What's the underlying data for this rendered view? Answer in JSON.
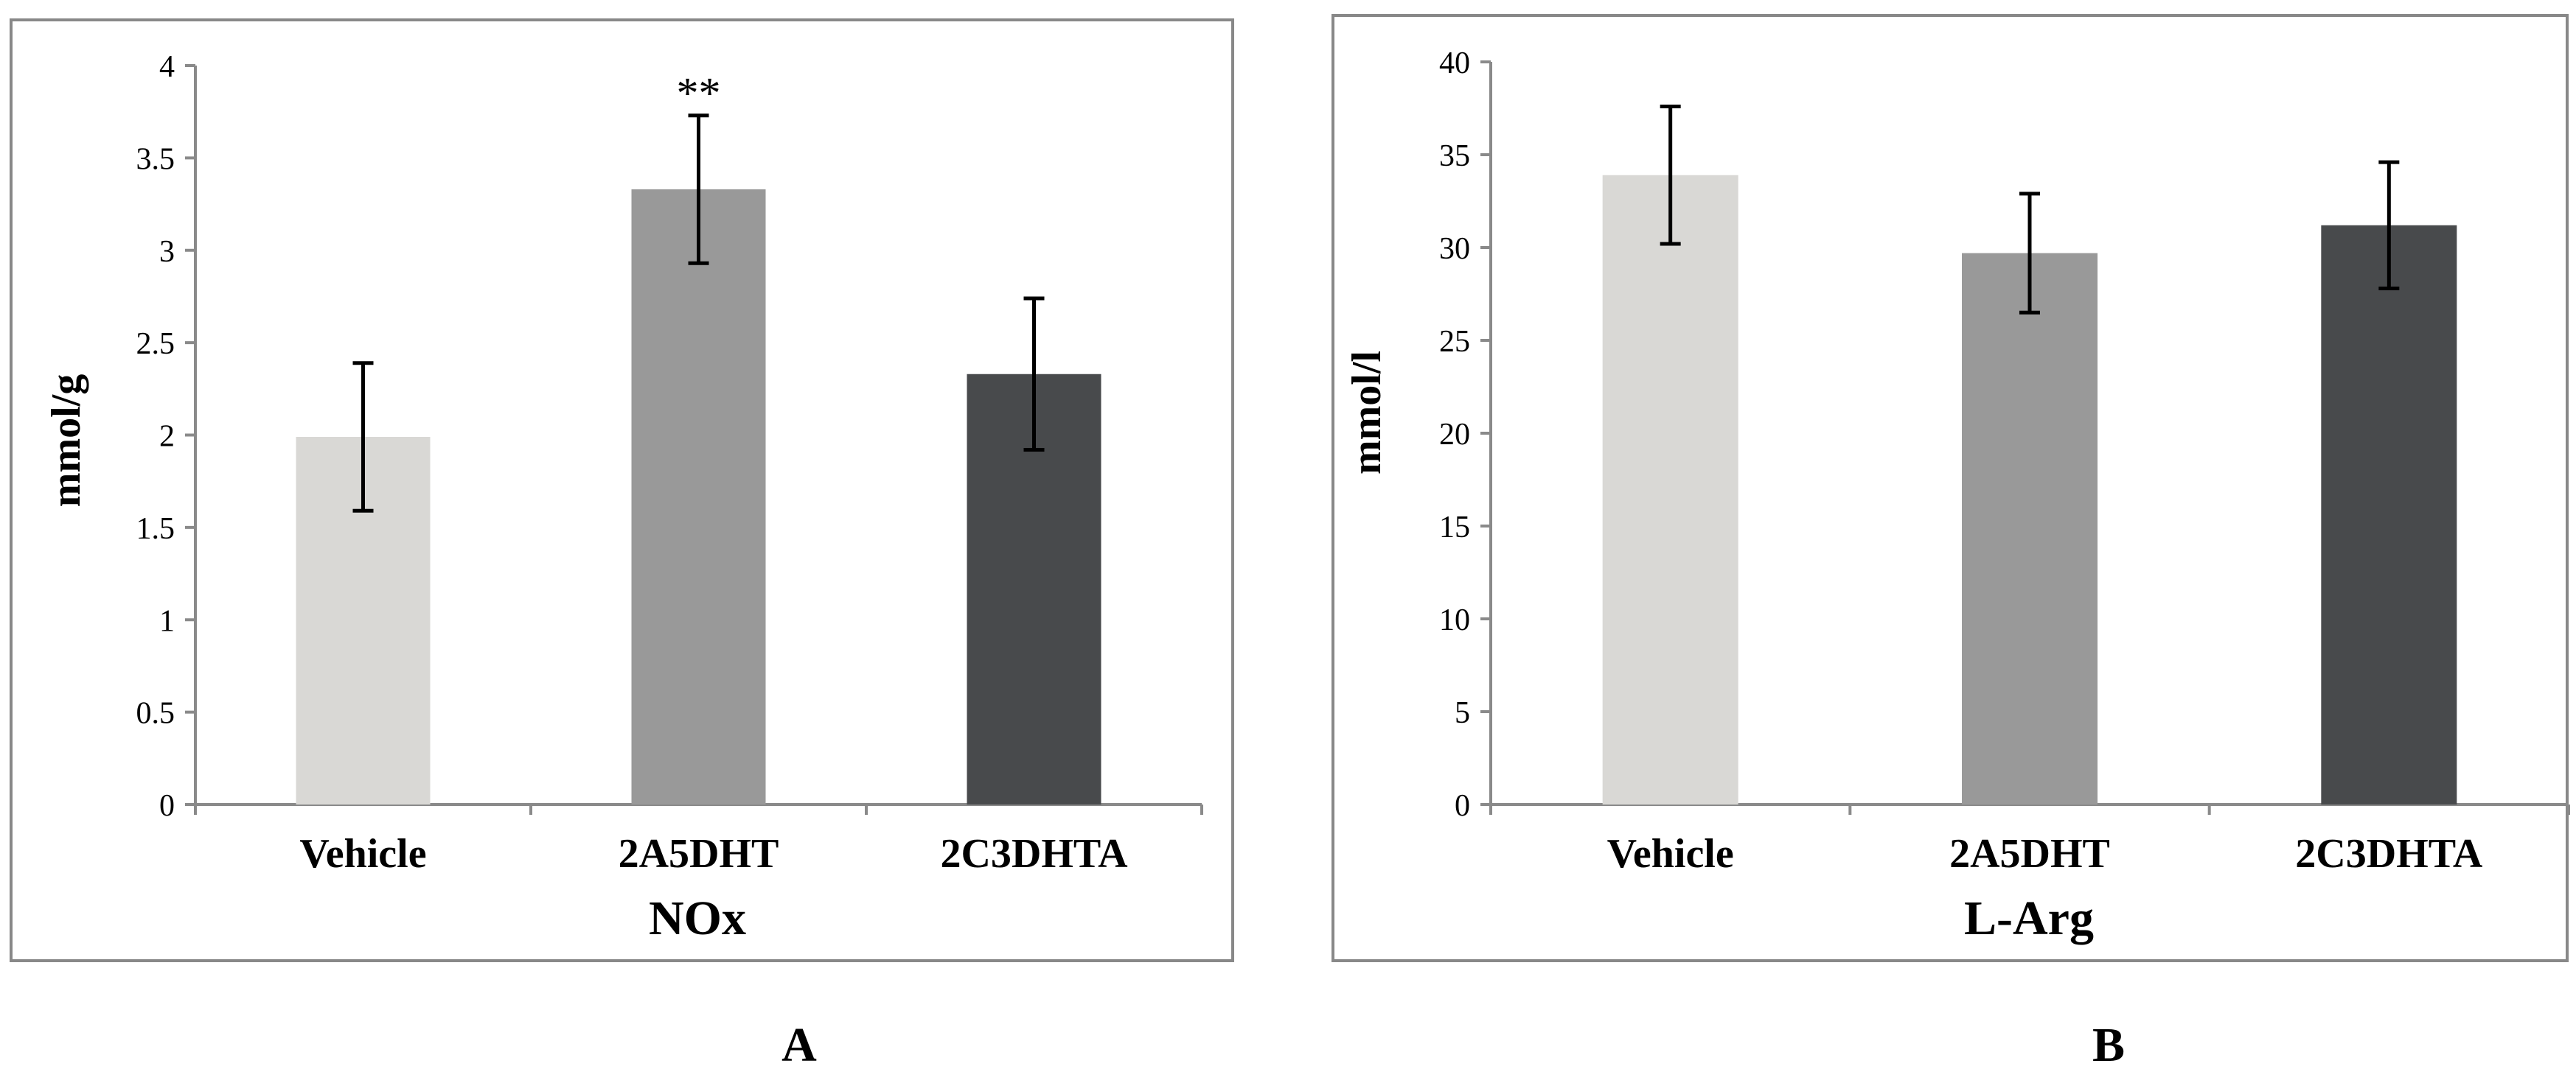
{
  "chart_data": [
    {
      "type": "bar",
      "panel_label": "A",
      "title": "",
      "xlabel": "NOx",
      "ylabel": "mmol/g",
      "categories": [
        "Vehicle",
        "2A5DHT",
        "2C3DHTA"
      ],
      "values": [
        1.99,
        3.33,
        2.33
      ],
      "errors": [
        0.4,
        0.4,
        0.41
      ],
      "annotations": [
        "",
        "**",
        ""
      ],
      "colors": [
        "#d9d8d5",
        "#999999",
        "#484a4c"
      ],
      "ylim": [
        0,
        4
      ],
      "yticks": [
        "0",
        "0.5",
        "1",
        "1.5",
        "2",
        "2.5",
        "3",
        "3.5",
        "4"
      ],
      "grid": false,
      "legend": "none"
    },
    {
      "type": "bar",
      "panel_label": "B",
      "title": "",
      "xlabel": "L-Arg",
      "ylabel": "mmol/l",
      "categories": [
        "Vehicle",
        "2A5DHT",
        "2C3DHTA"
      ],
      "values": [
        33.9,
        29.7,
        31.2
      ],
      "errors": [
        3.7,
        3.2,
        3.4
      ],
      "annotations": [
        "",
        "",
        ""
      ],
      "colors": [
        "#d9d8d5",
        "#999999",
        "#484a4c"
      ],
      "ylim": [
        0,
        40
      ],
      "yticks": [
        "0",
        "5",
        "10",
        "15",
        "20",
        "25",
        "30",
        "35",
        "40"
      ],
      "grid": false,
      "legend": "none"
    }
  ]
}
